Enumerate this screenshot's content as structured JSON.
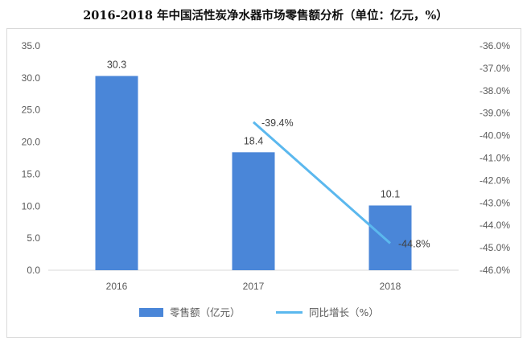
{
  "chart_data": {
    "type": "bar",
    "title": "2016-2018 年中国活性炭净水器市场零售额分析（单位：亿元，%）",
    "categories": [
      "2016",
      "2017",
      "2018"
    ],
    "series": [
      {
        "name": "零售额（亿元）",
        "type": "bar",
        "axis": "left",
        "values": [
          30.3,
          18.4,
          10.1
        ],
        "labels": [
          "30.3",
          "18.4",
          "10.1"
        ]
      },
      {
        "name": "同比增长（%）",
        "type": "line",
        "axis": "right",
        "values": [
          null,
          -39.4,
          -44.8
        ],
        "labels": [
          "",
          "-39.4%",
          "-44.8%"
        ]
      }
    ],
    "y_left": {
      "min": 0,
      "max": 35,
      "step": 5,
      "ticks": [
        "0.0",
        "5.0",
        "10.0",
        "15.0",
        "20.0",
        "25.0",
        "30.0",
        "35.0"
      ]
    },
    "y_right": {
      "min": -46,
      "max": -36,
      "step": 1,
      "ticks": [
        "-46.0%",
        "-45.0%",
        "-44.0%",
        "-43.0%",
        "-42.0%",
        "-41.0%",
        "-40.0%",
        "-39.0%",
        "-38.0%",
        "-37.0%",
        "-36.0%"
      ]
    },
    "grid": false,
    "legend": "bottom",
    "colors": {
      "bar": "#4a86d8",
      "line": "#5bb8ee",
      "text": "#595959",
      "axis": "#d9d9d9"
    }
  }
}
